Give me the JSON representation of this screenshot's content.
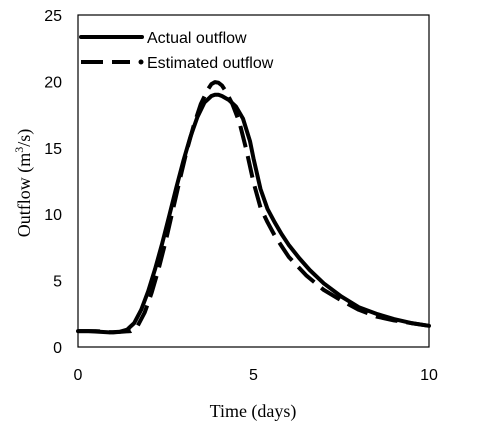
{
  "chart_data": {
    "type": "line",
    "title": "",
    "xlabel": "Time (days)",
    "ylabel_prefix": "Outflow (m",
    "ylabel_sup": "3",
    "ylabel_suffix": "/s)",
    "xlim": [
      0,
      10
    ],
    "ylim": [
      0,
      25
    ],
    "xticks": [
      0,
      5,
      10
    ],
    "yticks": [
      0,
      5,
      10,
      15,
      20,
      25
    ],
    "grid": false,
    "legend_placement": "top-left",
    "series": [
      {
        "name": "Actual outflow",
        "style": "solid",
        "color": "#000000",
        "x": [
          0,
          0.3,
          0.6,
          0.9,
          1.2,
          1.4,
          1.6,
          1.8,
          2.0,
          2.2,
          2.4,
          2.6,
          2.8,
          3.0,
          3.2,
          3.4,
          3.6,
          3.8,
          3.9,
          4.0,
          4.1,
          4.3,
          4.5,
          4.7,
          4.9,
          5.0,
          5.2,
          5.4,
          5.6,
          5.8,
          6.0,
          6.3,
          6.6,
          7.0,
          7.5,
          8.0,
          8.5,
          9.0,
          9.5,
          10.0
        ],
        "y": [
          1.2,
          1.2,
          1.15,
          1.1,
          1.15,
          1.3,
          1.8,
          2.8,
          4.2,
          5.9,
          7.8,
          9.9,
          12.0,
          14.0,
          15.8,
          17.3,
          18.4,
          18.9,
          19.0,
          19.0,
          18.9,
          18.6,
          18.1,
          17.2,
          15.5,
          14.2,
          11.9,
          10.4,
          9.4,
          8.5,
          7.7,
          6.7,
          5.8,
          4.8,
          3.8,
          3.0,
          2.5,
          2.1,
          1.8,
          1.6
        ]
      },
      {
        "name": "Estimated outflow",
        "style": "dashed",
        "color": "#000000",
        "x": [
          0,
          0.5,
          1.0,
          1.5,
          1.7,
          1.9,
          2.1,
          2.3,
          2.5,
          2.7,
          2.9,
          3.1,
          3.3,
          3.5,
          3.7,
          3.8,
          3.9,
          4.0,
          4.1,
          4.2,
          4.4,
          4.6,
          4.8,
          5.0,
          5.2,
          5.4,
          5.6,
          5.8,
          6.0,
          6.5,
          7.0,
          7.5,
          8.0,
          8.5,
          9.0,
          9.5,
          10.0
        ],
        "y": [
          1.2,
          1.2,
          1.1,
          1.2,
          1.6,
          2.6,
          4.1,
          5.9,
          8.0,
          10.3,
          12.6,
          14.8,
          16.7,
          18.3,
          19.4,
          19.8,
          19.95,
          19.9,
          19.7,
          19.3,
          18.3,
          16.9,
          14.8,
          12.4,
          10.5,
          9.4,
          8.4,
          7.6,
          6.8,
          5.4,
          4.3,
          3.5,
          2.8,
          2.3,
          2.0,
          1.8,
          1.6
        ]
      }
    ]
  }
}
